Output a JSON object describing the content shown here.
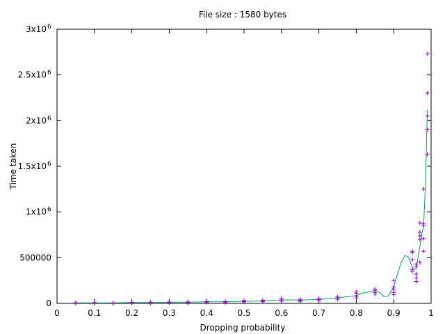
{
  "chart_data": {
    "type": "scatter",
    "title": "File size : 1580 bytes",
    "xlabel": "Dropping probability",
    "ylabel": "Time taken",
    "xlim": [
      0,
      1
    ],
    "ylim": [
      0,
      3000000
    ],
    "grid": false,
    "x_ticks": [
      {
        "v": 0,
        "label": "0"
      },
      {
        "v": 0.1,
        "label": "0.1"
      },
      {
        "v": 0.2,
        "label": "0.2"
      },
      {
        "v": 0.3,
        "label": "0.3"
      },
      {
        "v": 0.4,
        "label": "0.4"
      },
      {
        "v": 0.5,
        "label": "0.5"
      },
      {
        "v": 0.6,
        "label": "0.6"
      },
      {
        "v": 0.7,
        "label": "0.7"
      },
      {
        "v": 0.8,
        "label": "0.8"
      },
      {
        "v": 0.9,
        "label": "0.9"
      },
      {
        "v": 1,
        "label": "1"
      }
    ],
    "y_ticks": [
      {
        "v": 0,
        "base": "0",
        "exp": ""
      },
      {
        "v": 500000,
        "base": "500000",
        "exp": ""
      },
      {
        "v": 1000000,
        "base": "1x10",
        "exp": "6"
      },
      {
        "v": 1500000,
        "base": "1.5x10",
        "exp": "6"
      },
      {
        "v": 2000000,
        "base": "2x10",
        "exp": "6"
      },
      {
        "v": 2500000,
        "base": "2.5x10",
        "exp": "6"
      },
      {
        "v": 3000000,
        "base": "3x10",
        "exp": "6"
      }
    ],
    "series": [
      {
        "marker": "plus",
        "color": "#9400d3",
        "points": [
          [
            0.05,
            3000
          ],
          [
            0.05,
            5000
          ],
          [
            0.05,
            7000
          ],
          [
            0.1,
            4000
          ],
          [
            0.1,
            6000
          ],
          [
            0.1,
            9000
          ],
          [
            0.15,
            4000
          ],
          [
            0.15,
            6000
          ],
          [
            0.2,
            5000
          ],
          [
            0.2,
            8000
          ],
          [
            0.2,
            12000
          ],
          [
            0.25,
            6000
          ],
          [
            0.25,
            9000
          ],
          [
            0.25,
            12000
          ],
          [
            0.3,
            7000
          ],
          [
            0.3,
            11000
          ],
          [
            0.3,
            15000
          ],
          [
            0.35,
            8000
          ],
          [
            0.35,
            12000
          ],
          [
            0.35,
            16000
          ],
          [
            0.4,
            10000
          ],
          [
            0.4,
            15000
          ],
          [
            0.4,
            22000
          ],
          [
            0.45,
            10000
          ],
          [
            0.45,
            14000
          ],
          [
            0.45,
            20000
          ],
          [
            0.5,
            15000
          ],
          [
            0.5,
            22000
          ],
          [
            0.5,
            30000
          ],
          [
            0.55,
            18000
          ],
          [
            0.55,
            25000
          ],
          [
            0.55,
            35000
          ],
          [
            0.6,
            25000
          ],
          [
            0.6,
            38000
          ],
          [
            0.6,
            55000
          ],
          [
            0.65,
            22000
          ],
          [
            0.65,
            32000
          ],
          [
            0.65,
            45000
          ],
          [
            0.7,
            30000
          ],
          [
            0.7,
            42000
          ],
          [
            0.7,
            55000
          ],
          [
            0.75,
            45000
          ],
          [
            0.75,
            58000
          ],
          [
            0.75,
            70000
          ],
          [
            0.8,
            60000
          ],
          [
            0.8,
            80000
          ],
          [
            0.8,
            110000
          ],
          [
            0.8,
            125000
          ],
          [
            0.85,
            100000
          ],
          [
            0.85,
            120000
          ],
          [
            0.85,
            145000
          ],
          [
            0.85,
            155000
          ],
          [
            0.9,
            95000
          ],
          [
            0.9,
            120000
          ],
          [
            0.9,
            150000
          ],
          [
            0.9,
            180000
          ],
          [
            0.9,
            250000
          ],
          [
            0.95,
            350000
          ],
          [
            0.95,
            370000
          ],
          [
            0.95,
            480000
          ],
          [
            0.95,
            560000
          ],
          [
            0.95,
            570000
          ],
          [
            0.96,
            240000
          ],
          [
            0.96,
            280000
          ],
          [
            0.96,
            320000
          ],
          [
            0.96,
            400000
          ],
          [
            0.96,
            430000
          ],
          [
            0.97,
            450000
          ],
          [
            0.97,
            700000
          ],
          [
            0.97,
            740000
          ],
          [
            0.97,
            780000
          ],
          [
            0.97,
            880000
          ],
          [
            0.98,
            570000
          ],
          [
            0.98,
            710000
          ],
          [
            0.98,
            850000
          ],
          [
            0.98,
            870000
          ],
          [
            0.98,
            1250000
          ],
          [
            0.99,
            1630000
          ],
          [
            0.99,
            1900000
          ],
          [
            0.99,
            2050000
          ],
          [
            0.99,
            2300000
          ],
          [
            0.99,
            2730000
          ]
        ]
      },
      {
        "marker": "line",
        "color": "#009e73",
        "points": [
          [
            0.05,
            5000
          ],
          [
            0.1,
            6000
          ],
          [
            0.15,
            6000
          ],
          [
            0.2,
            9000
          ],
          [
            0.25,
            10000
          ],
          [
            0.3,
            12000
          ],
          [
            0.35,
            14000
          ],
          [
            0.4,
            17000
          ],
          [
            0.45,
            18000
          ],
          [
            0.5,
            23000
          ],
          [
            0.55,
            27000
          ],
          [
            0.6,
            38000
          ],
          [
            0.65,
            36000
          ],
          [
            0.7,
            43000
          ],
          [
            0.75,
            60000
          ],
          [
            0.8,
            85000
          ],
          [
            0.82,
            115000
          ],
          [
            0.84,
            130000
          ],
          [
            0.86,
            125000
          ],
          [
            0.875,
            75000
          ],
          [
            0.885,
            80000
          ],
          [
            0.9,
            180000
          ],
          [
            0.91,
            320000
          ],
          [
            0.92,
            450000
          ],
          [
            0.93,
            525000
          ],
          [
            0.94,
            505000
          ],
          [
            0.95,
            390000
          ],
          [
            0.96,
            380000
          ],
          [
            0.97,
            620000
          ],
          [
            0.975,
            750000
          ],
          [
            0.98,
            850000
          ],
          [
            0.985,
            1300000
          ],
          [
            0.99,
            2120000
          ]
        ]
      }
    ]
  }
}
